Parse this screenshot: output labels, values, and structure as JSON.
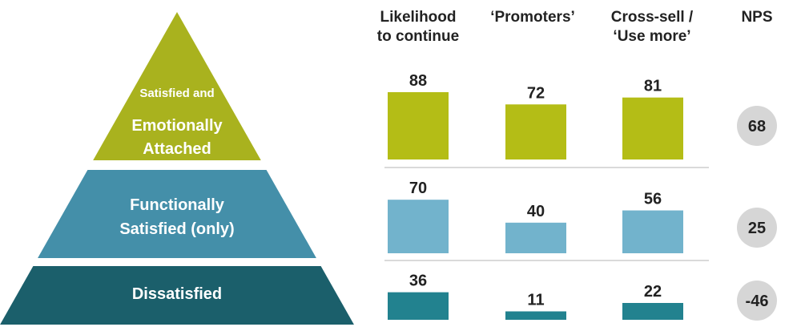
{
  "chart_data": {
    "type": "bar",
    "columns": [
      {
        "line1": "Likelihood",
        "line2": "to continue"
      },
      {
        "line1": "‘Promoters’",
        "line2": ""
      },
      {
        "line1": "Cross-sell /",
        "line2": "‘Use more’"
      }
    ],
    "nps_label": "NPS",
    "ylim": [
      0,
      100
    ],
    "tiers": [
      {
        "name": "Satisfied and Emotionally Attached",
        "label_lines": [
          "Satisfied and",
          "Emotionally",
          "Attached"
        ],
        "values": [
          88,
          72,
          81
        ],
        "nps": 68,
        "pyramid_color": "#a9b21e",
        "bar_color": "#b4bd16"
      },
      {
        "name": "Functionally Satisfied (only)",
        "label_lines": [
          "Functionally",
          "Satisfied (only)"
        ],
        "values": [
          70,
          40,
          56
        ],
        "nps": 25,
        "pyramid_color": "#448fa9",
        "bar_color": "#72b3cc"
      },
      {
        "name": "Dissatisfied",
        "label_lines": [
          "Dissatisfied"
        ],
        "values": [
          36,
          11,
          22
        ],
        "nps": -46,
        "pyramid_color": "#1b5f6b",
        "bar_color": "#22828f"
      }
    ],
    "nps_circle_color": "#d6d6d6",
    "divider_color": "#b5b5b5"
  }
}
